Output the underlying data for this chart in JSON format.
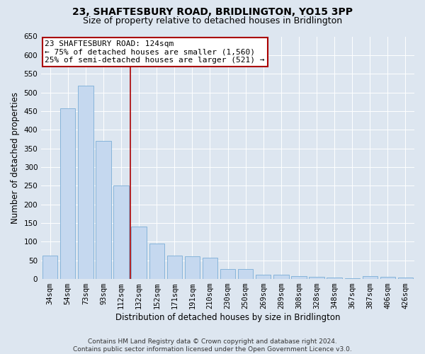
{
  "title": "23, SHAFTESBURY ROAD, BRIDLINGTON, YO15 3PP",
  "subtitle": "Size of property relative to detached houses in Bridlington",
  "xlabel": "Distribution of detached houses by size in Bridlington",
  "ylabel": "Number of detached properties",
  "categories": [
    "34sqm",
    "54sqm",
    "73sqm",
    "93sqm",
    "112sqm",
    "132sqm",
    "152sqm",
    "171sqm",
    "191sqm",
    "210sqm",
    "230sqm",
    "250sqm",
    "269sqm",
    "289sqm",
    "308sqm",
    "328sqm",
    "348sqm",
    "367sqm",
    "387sqm",
    "406sqm",
    "426sqm"
  ],
  "values": [
    63,
    457,
    519,
    370,
    250,
    140,
    95,
    62,
    60,
    57,
    26,
    26,
    11,
    12,
    7,
    6,
    4,
    3,
    7,
    5,
    4
  ],
  "bar_color": "#c5d8ef",
  "bar_edge_color": "#7aaed6",
  "vline_x": 4.5,
  "vline_color": "#aa0000",
  "annotation_text": "23 SHAFTESBURY ROAD: 124sqm\n← 75% of detached houses are smaller (1,560)\n25% of semi-detached houses are larger (521) →",
  "annotation_box_color": "white",
  "annotation_box_edge": "#aa0000",
  "bg_color": "#dde6f0",
  "plot_bg_color": "#dde6f0",
  "ylim": [
    0,
    650
  ],
  "yticks": [
    0,
    50,
    100,
    150,
    200,
    250,
    300,
    350,
    400,
    450,
    500,
    550,
    600,
    650
  ],
  "footer": "Contains HM Land Registry data © Crown copyright and database right 2024.\nContains public sector information licensed under the Open Government Licence v3.0.",
  "title_fontsize": 10,
  "subtitle_fontsize": 9,
  "xlabel_fontsize": 8.5,
  "ylabel_fontsize": 8.5,
  "tick_fontsize": 7.5,
  "annotation_fontsize": 8,
  "footer_fontsize": 6.5
}
